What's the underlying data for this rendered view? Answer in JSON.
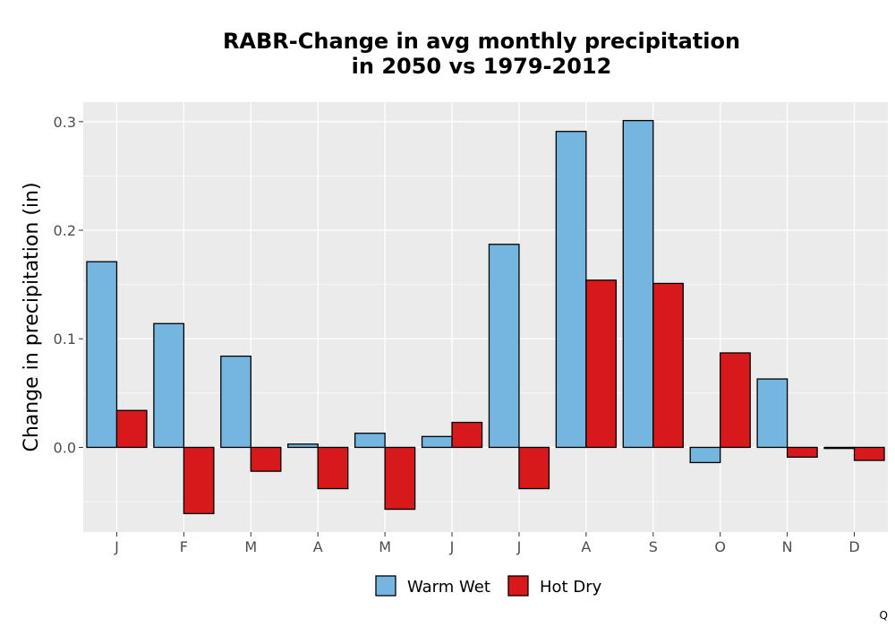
{
  "chart_data": {
    "type": "bar",
    "title": [
      "RABR-Change in avg monthly precipitation",
      "in 2050 vs 1979-2012"
    ],
    "ylabel": "Change in precipitation (in)",
    "xlabel": "",
    "categories": [
      "J",
      "F",
      "M",
      "A",
      "M",
      "J",
      "J",
      "A",
      "S",
      "O",
      "N",
      "D"
    ],
    "series": [
      {
        "name": "Warm Wet",
        "color": "#74b6e0",
        "values": [
          0.171,
          0.114,
          0.084,
          0.003,
          0.013,
          0.01,
          0.187,
          0.291,
          0.301,
          -0.014,
          0.063,
          -0.001
        ]
      },
      {
        "name": "Hot Dry",
        "color": "#d7191c",
        "values": [
          0.034,
          -0.061,
          -0.022,
          -0.038,
          -0.057,
          0.023,
          -0.038,
          0.154,
          0.151,
          0.087,
          -0.009,
          -0.012
        ]
      }
    ],
    "ylim": [
      -0.078,
      0.318
    ],
    "yticks": [
      0.0,
      0.1,
      0.2,
      0.3
    ],
    "ytick_labels": [
      "0.0",
      "0.1",
      "0.2",
      "0.3"
    ],
    "grid": true,
    "legend_position": "bottom",
    "panel_background": "#ebebeb"
  },
  "corner_mark": "Q"
}
